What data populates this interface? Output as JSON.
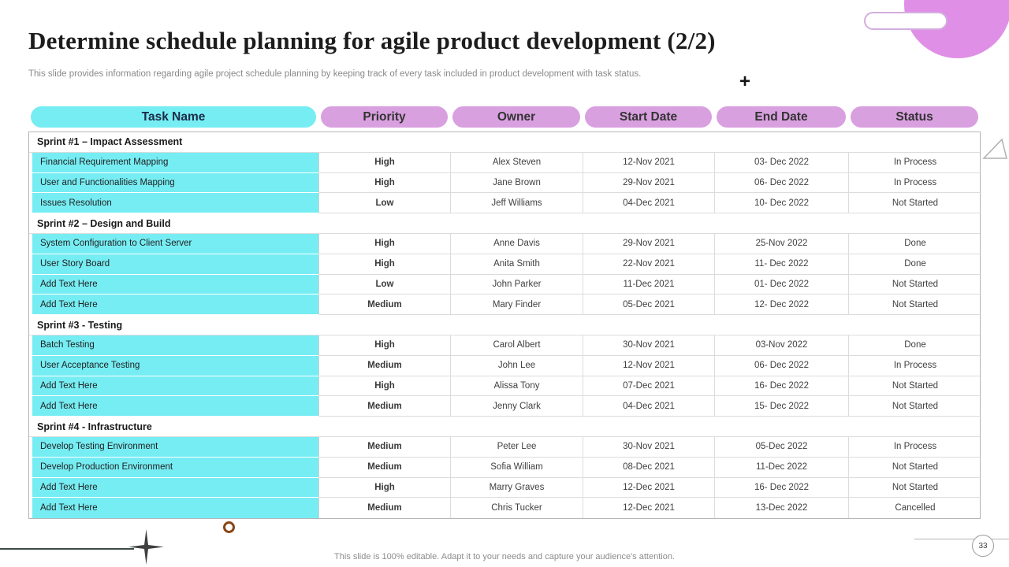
{
  "slide": {
    "title": "Determine schedule planning for agile product development (2/2)",
    "subtitle": "This slide provides information regarding agile project schedule planning by keeping track of every  task included in product development with task status.",
    "footer": "This slide is 100% editable.  Adapt it to your needs and capture your audience's attention.",
    "page_number": "33"
  },
  "decorations": {
    "plus_glyph": "+"
  },
  "colors": {
    "cyan": "#76EDF3",
    "purple": "#D9A0E0",
    "accent_circle": "#DF8FE6"
  },
  "table": {
    "headers": [
      "Task Name",
      "Priority",
      "Owner",
      "Start Date",
      "End Date",
      "Status"
    ],
    "sections": [
      {
        "title": "Sprint #1 – Impact Assessment",
        "rows": [
          {
            "task": "Financial  Requirement  Mapping",
            "priority": "High",
            "owner": "Alex Steven",
            "start": "12-Nov 2021",
            "end": "03- Dec 2022",
            "status": "In Process"
          },
          {
            "task": "User and Functionalities  Mapping",
            "priority": "High",
            "owner": "Jane Brown",
            "start": "29-Nov 2021",
            "end": "06- Dec 2022",
            "status": "In Process"
          },
          {
            "task": "Issues  Resolution",
            "priority": "Low",
            "owner": "Jeff  Williams",
            "start": "04-Dec 2021",
            "end": "10- Dec 2022",
            "status": "Not Started"
          }
        ]
      },
      {
        "title": "Sprint #2 – Design and Build",
        "rows": [
          {
            "task": "System Configuration  to Client Server",
            "priority": "High",
            "owner": "Anne Davis",
            "start": "29-Nov 2021",
            "end": "25-Nov 2022",
            "status": "Done"
          },
          {
            "task": "User  Story Board",
            "priority": "High",
            "owner": "Anita Smith",
            "start": "22-Nov 2021",
            "end": "11- Dec 2022",
            "status": "Done"
          },
          {
            "task": "Add Text Here",
            "priority": "Low",
            "owner": "John Parker",
            "start": "11-Dec 2021",
            "end": "01- Dec 2022",
            "status": "Not Started"
          },
          {
            "task": "Add Text  Here",
            "priority": "Medium",
            "owner": "Mary Finder",
            "start": "05-Dec 2021",
            "end": "12- Dec 2022",
            "status": "Not Started"
          }
        ]
      },
      {
        "title": "Sprint #3 - Testing",
        "rows": [
          {
            "task": "Batch Testing",
            "priority": "High",
            "owner": "Carol Albert",
            "start": "30-Nov 2021",
            "end": "03-Nov 2022",
            "status": "Done"
          },
          {
            "task": "User  Acceptance  Testing",
            "priority": "Medium",
            "owner": "John Lee",
            "start": "12-Nov 2021",
            "end": "06- Dec 2022",
            "status": "In Process"
          },
          {
            "task": "Add Text Here",
            "priority": "High",
            "owner": "Alissa Tony",
            "start": "07-Dec 2021",
            "end": "16- Dec 2022",
            "status": "Not Started"
          },
          {
            "task": "Add Text Here",
            "priority": "Medium",
            "owner": "Jenny  Clark",
            "start": "04-Dec 2021",
            "end": "15- Dec 2022",
            "status": "Not Started"
          }
        ]
      },
      {
        "title": "Sprint #4  - Infrastructure",
        "rows": [
          {
            "task": "Develop  Testing  Environment",
            "priority": "Medium",
            "owner": "Peter Lee",
            "start": "30-Nov 2021",
            "end": "05-Dec 2022",
            "status": "In Process"
          },
          {
            "task": "Develop  Production  Environment",
            "priority": "Medium",
            "owner": "Sofia  William",
            "start": "08-Dec 2021",
            "end": "11-Dec 2022",
            "status": "Not Started"
          },
          {
            "task": "Add Text Here",
            "priority": "High",
            "owner": "Marry  Graves",
            "start": "12-Dec 2021",
            "end": "16- Dec 2022",
            "status": "Not Started"
          },
          {
            "task": "Add Text Here",
            "priority": "Medium",
            "owner": "Chris Tucker",
            "start": "12-Dec 2021",
            "end": "13-Dec 2022",
            "status": "Cancelled"
          }
        ]
      }
    ]
  }
}
